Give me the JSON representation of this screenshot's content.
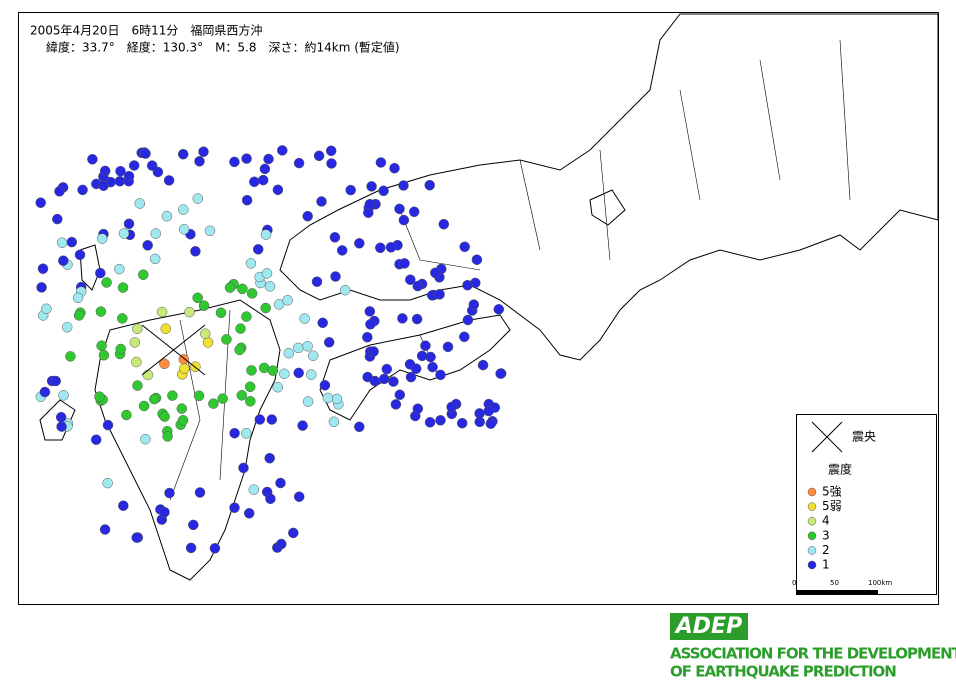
{
  "header": {
    "line1": "2005年4月20日　6時11分　福岡県西方沖",
    "line2": "緯度：33.7°　経度：130.3°　M：5.8　深さ：約14km (暫定値)"
  },
  "legend": {
    "epicenter": "震央",
    "intensity_title": "震度",
    "items": [
      "5強",
      "5弱",
      "4",
      "3",
      "2",
      "1"
    ]
  },
  "scale": {
    "labels": [
      "0",
      "50",
      "100km"
    ]
  },
  "logo": {
    "mark": "ADEP",
    "line1": "ASSOCIATION  FOR THE DEVELOPMENT",
    "line2": "OF EARTHQUAKE PREDICTION"
  }
}
